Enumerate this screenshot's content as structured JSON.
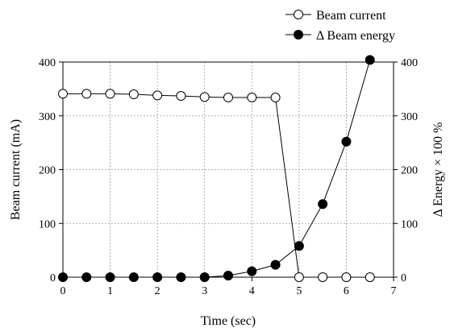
{
  "chart_data": {
    "type": "line",
    "xlabel": "Time (sec)",
    "ylabel_left": "Beam current (mA)",
    "ylabel_right": "Δ Energy × 100 %",
    "xlim": [
      0,
      7
    ],
    "ylim_left": [
      0,
      400
    ],
    "ylim_right": [
      0,
      400
    ],
    "x_ticks": [
      "0",
      "1",
      "2",
      "3",
      "4",
      "5",
      "6",
      "7"
    ],
    "y_ticks_left": [
      "0",
      "100",
      "200",
      "300",
      "400"
    ],
    "y_ticks_right": [
      "0",
      "100",
      "200",
      "300",
      "400"
    ],
    "grid": true,
    "legend_position": "top-right",
    "series": [
      {
        "name": "Beam current",
        "axis": "left",
        "marker": "open-circle",
        "color": "#000000",
        "x": [
          0,
          0.5,
          1,
          1.5,
          2,
          2.5,
          3,
          3.5,
          4,
          4.5,
          5,
          5.5,
          6,
          6.5
        ],
        "y": [
          341,
          341,
          341,
          340,
          338,
          337,
          335,
          334,
          334,
          334,
          0,
          0,
          0,
          0
        ]
      },
      {
        "name": "Δ Beam energy",
        "axis": "right",
        "marker": "filled-circle",
        "color": "#000000",
        "x": [
          0,
          0.5,
          1,
          1.5,
          2,
          2.5,
          3,
          3.5,
          4,
          4.5,
          5,
          5.5,
          6,
          6.5
        ],
        "y": [
          0,
          0,
          0,
          0,
          0,
          0,
          0,
          3,
          11,
          23,
          58,
          136,
          252,
          404
        ]
      }
    ]
  }
}
